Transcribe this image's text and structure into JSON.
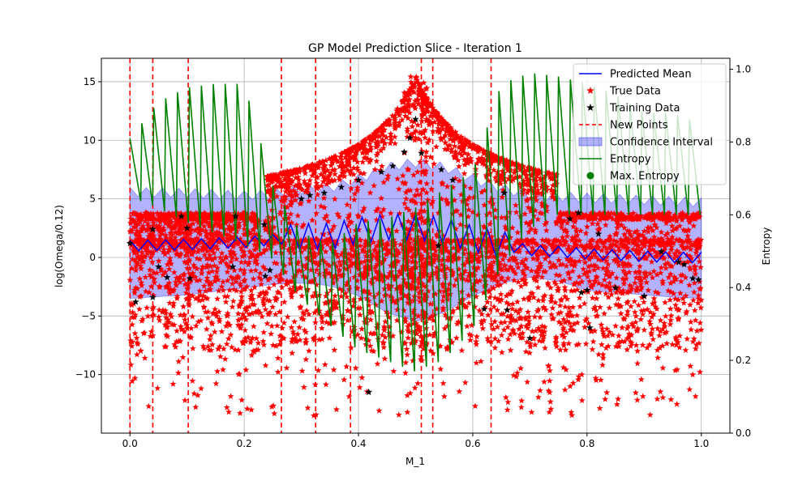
{
  "chart_data": {
    "type": "scatter",
    "title": "GP Model Prediction Slice - Iteration 1",
    "xlabel": "M_1",
    "ylabel": "log(Omega/0.12)",
    "y2label": "Entropy",
    "xlim": [
      -0.05,
      1.05
    ],
    "ylim": [
      -15.0,
      17.0
    ],
    "y2lim": [
      0.0,
      1.03
    ],
    "x_ticks": [
      "0.0",
      "0.2",
      "0.4",
      "0.6",
      "0.8",
      "1.0"
    ],
    "y_ticks": [
      "−10",
      "−5",
      "0",
      "5",
      "10",
      "15"
    ],
    "y2_ticks": [
      "0.0",
      "0.2",
      "0.4",
      "0.6",
      "0.8",
      "1.0"
    ],
    "grid": true,
    "legend_position": "upper-right",
    "legend": [
      {
        "label": "Predicted Mean",
        "kind": "line",
        "color": "#0000ff"
      },
      {
        "label": "True Data",
        "kind": "star",
        "color": "#ff0000"
      },
      {
        "label": "Training Data",
        "kind": "star",
        "color": "#000000"
      },
      {
        "label": "New Points",
        "kind": "dashed",
        "color": "#ff0000"
      },
      {
        "label": "Confidence Interval",
        "kind": "patch",
        "color": "#0000ff"
      },
      {
        "label": "Entropy",
        "kind": "line",
        "color": "#008000"
      },
      {
        "label": "Max. Entropy",
        "kind": "dot",
        "color": "#008000"
      }
    ],
    "new_points_x": [
      0.0,
      0.04,
      0.102,
      0.265,
      0.325,
      0.386,
      0.51,
      0.53,
      0.632
    ],
    "predicted_mean": {
      "name": "Predicted Mean",
      "x": [
        0.0,
        0.1,
        0.2,
        0.25,
        0.3,
        0.35,
        0.4,
        0.45,
        0.5,
        0.55,
        0.6,
        0.65,
        0.7,
        0.75,
        0.8,
        0.85,
        0.9,
        0.95,
        1.0
      ],
      "y": [
        1.0,
        1.1,
        1.3,
        1.5,
        1.8,
        1.8,
        2.3,
        2.6,
        2.6,
        2.3,
        1.6,
        1.1,
        0.6,
        0.5,
        0.3,
        0.2,
        0.1,
        0.0,
        0.0
      ]
    },
    "confidence_interval": {
      "name": "Confidence Interval",
      "x": [
        0.0,
        0.1,
        0.2,
        0.25,
        0.3,
        0.35,
        0.4,
        0.45,
        0.5,
        0.55,
        0.6,
        0.65,
        0.7,
        0.75,
        0.8,
        0.85,
        0.9,
        0.95,
        1.0
      ],
      "upper": [
        5.5,
        5.4,
        5.2,
        5.3,
        5.7,
        5.8,
        6.6,
        7.6,
        8.0,
        7.6,
        6.6,
        5.8,
        5.2,
        5.1,
        5.0,
        4.9,
        4.8,
        4.7,
        4.6
      ],
      "lower": [
        -3.5,
        -3.2,
        -2.6,
        -2.3,
        -2.2,
        -2.4,
        -3.3,
        -4.7,
        -5.5,
        -4.7,
        -3.3,
        -2.2,
        -1.7,
        -2.0,
        -2.8,
        -3.0,
        -3.2,
        -3.4,
        -3.5
      ]
    },
    "entropy": {
      "name": "Entropy",
      "x": [
        0.0,
        0.05,
        0.1,
        0.15,
        0.2,
        0.25,
        0.3,
        0.35,
        0.4,
        0.45,
        0.5,
        0.55,
        0.6,
        0.65,
        0.7,
        0.75,
        0.8,
        0.85,
        0.9,
        0.95,
        1.0
      ],
      "peak": [
        0.81,
        0.91,
        0.95,
        0.96,
        0.96,
        0.68,
        0.55,
        0.52,
        0.58,
        0.59,
        0.62,
        0.67,
        0.72,
        0.96,
        0.99,
        0.98,
        0.96,
        0.93,
        0.88,
        0.88,
        0.85
      ],
      "trough": [
        0.65,
        0.62,
        0.58,
        0.55,
        0.52,
        0.48,
        0.37,
        0.3,
        0.23,
        0.2,
        0.17,
        0.2,
        0.28,
        0.45,
        0.56,
        0.6,
        0.6,
        0.6,
        0.6,
        0.6,
        0.6
      ]
    },
    "true_data": {
      "name": "True Data",
      "bands": [
        {
          "x": [
            0.0,
            0.22
          ],
          "y": [
            3.2,
            3.8
          ],
          "pattern": "plateau"
        },
        {
          "x": [
            0.0,
            0.25
          ],
          "y": [
            1.3,
            3.3
          ],
          "pattern": "upper"
        },
        {
          "x": [
            0.24,
            0.5
          ],
          "y": [
            3.5,
            15.6
          ],
          "pattern": "rise"
        },
        {
          "x": [
            0.5,
            0.75
          ],
          "y": [
            15.6,
            1.3
          ],
          "pattern": "fall"
        },
        {
          "x": [
            0.75,
            1.0
          ],
          "y": [
            3.2,
            3.8
          ],
          "pattern": "plateau"
        },
        {
          "x": [
            0.0,
            1.0
          ],
          "y": [
            -13.5,
            1.5
          ],
          "pattern": "scatter"
        }
      ]
    },
    "training_data": {
      "name": "Training Data",
      "points": [
        [
          0.0,
          1.2
        ],
        [
          0.01,
          -3.8
        ],
        [
          0.04,
          2.4
        ],
        [
          0.04,
          -3.4
        ],
        [
          0.05,
          -0.8
        ],
        [
          0.065,
          -1.7
        ],
        [
          0.09,
          3.5
        ],
        [
          0.1,
          2.5
        ],
        [
          0.105,
          -1.8
        ],
        [
          0.18,
          -0.8
        ],
        [
          0.185,
          3.5
        ],
        [
          0.235,
          2.8
        ],
        [
          0.237,
          -1.6
        ],
        [
          0.245,
          -1.1
        ],
        [
          0.3,
          5.0
        ],
        [
          0.315,
          5.3
        ],
        [
          0.34,
          5.5
        ],
        [
          0.37,
          6.0
        ],
        [
          0.4,
          6.6
        ],
        [
          0.418,
          -11.5
        ],
        [
          0.44,
          7.3
        ],
        [
          0.46,
          7.8
        ],
        [
          0.48,
          9.0
        ],
        [
          0.49,
          10.2
        ],
        [
          0.5,
          11.8
        ],
        [
          0.51,
          8.9
        ],
        [
          0.545,
          7.5
        ],
        [
          0.54,
          1.0
        ],
        [
          0.565,
          6.6
        ],
        [
          0.62,
          -4.4
        ],
        [
          0.655,
          5.5
        ],
        [
          0.66,
          -4.5
        ],
        [
          0.7,
          -6.9
        ],
        [
          0.77,
          3.3
        ],
        [
          0.785,
          3.8
        ],
        [
          0.79,
          -3.0
        ],
        [
          0.8,
          -2.8
        ],
        [
          0.805,
          -6.0
        ],
        [
          0.82,
          2.0
        ],
        [
          0.85,
          -2.6
        ],
        [
          0.9,
          -3.3
        ],
        [
          0.93,
          0.5
        ],
        [
          0.96,
          -0.4
        ],
        [
          0.97,
          -0.6
        ],
        [
          0.985,
          -1.8
        ],
        [
          0.995,
          -1.9
        ]
      ]
    }
  }
}
